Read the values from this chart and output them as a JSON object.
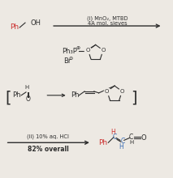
{
  "bg_color": "#ede9e3",
  "text_color": "#2d2d2d",
  "red_color": "#cc3333",
  "blue_color": "#3a6db5",
  "reagent1_line1": "(i) MnO₂, MTBD",
  "reagent1_line2": "4A mol. sieves",
  "reagent2_line1": "(ii) 10% aq. HCl",
  "yield_text": "82% overall",
  "ph3p_text": "Ph₃P",
  "br_text": "Br",
  "ph_text": "Ph",
  "o_text": "O",
  "h_text": "H",
  "oh_text": "OH"
}
